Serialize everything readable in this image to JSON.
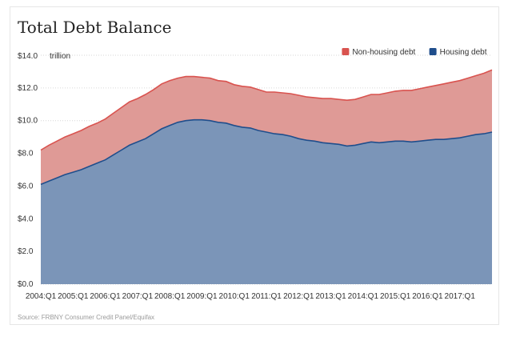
{
  "chart_data": {
    "type": "area",
    "stacked": true,
    "title": "Total Debt Balance",
    "unit_prefix": "$14.0",
    "unit_label": "trillion",
    "yticks": [
      "$0.0",
      "$2.0",
      "$4.0",
      "$6.0",
      "$8.0",
      "$10.0",
      "$12.0",
      "$14.0"
    ],
    "ylim": [
      0,
      14
    ],
    "xticks": [
      "2004:Q1",
      "2005:Q1",
      "2006:Q1",
      "2007:Q1",
      "2008:Q1",
      "2009:Q1",
      "2010:Q1",
      "2011:Q1",
      "2012:Q1",
      "2013:Q1",
      "2014:Q1",
      "2015:Q1",
      "2016:Q1",
      "2017:Q1"
    ],
    "grid": "horizontal",
    "legend_position": "top-right",
    "legend": [
      {
        "name": "Non-housing debt",
        "color": "#d9534f"
      },
      {
        "name": "Housing debt",
        "color": "#1f4e8c"
      }
    ],
    "x": [
      "2004:Q1",
      "2004:Q2",
      "2004:Q3",
      "2004:Q4",
      "2005:Q1",
      "2005:Q2",
      "2005:Q3",
      "2005:Q4",
      "2006:Q1",
      "2006:Q2",
      "2006:Q3",
      "2006:Q4",
      "2007:Q1",
      "2007:Q2",
      "2007:Q3",
      "2007:Q4",
      "2008:Q1",
      "2008:Q2",
      "2008:Q3",
      "2008:Q4",
      "2009:Q1",
      "2009:Q2",
      "2009:Q3",
      "2009:Q4",
      "2010:Q1",
      "2010:Q2",
      "2010:Q3",
      "2010:Q4",
      "2011:Q1",
      "2011:Q2",
      "2011:Q3",
      "2011:Q4",
      "2012:Q1",
      "2012:Q2",
      "2012:Q3",
      "2012:Q4",
      "2013:Q1",
      "2013:Q2",
      "2013:Q3",
      "2013:Q4",
      "2014:Q1",
      "2014:Q2",
      "2014:Q3",
      "2014:Q4",
      "2015:Q1",
      "2015:Q2",
      "2015:Q3",
      "2015:Q4",
      "2016:Q1",
      "2016:Q2",
      "2016:Q3",
      "2016:Q4",
      "2017:Q1",
      "2017:Q2",
      "2017:Q3",
      "2017:Q4",
      "2018:Q1"
    ],
    "series": [
      {
        "name": "Housing debt",
        "color": "#1f4e8c",
        "fill": "#7b95b8",
        "values": [
          6.1,
          6.3,
          6.5,
          6.7,
          6.85,
          7.0,
          7.2,
          7.4,
          7.6,
          7.9,
          8.2,
          8.5,
          8.7,
          8.9,
          9.2,
          9.5,
          9.7,
          9.9,
          10.0,
          10.05,
          10.05,
          10.0,
          9.9,
          9.85,
          9.7,
          9.6,
          9.55,
          9.4,
          9.3,
          9.2,
          9.15,
          9.05,
          8.9,
          8.8,
          8.75,
          8.65,
          8.6,
          8.55,
          8.45,
          8.5,
          8.6,
          8.7,
          8.65,
          8.7,
          8.75,
          8.75,
          8.7,
          8.75,
          8.8,
          8.85,
          8.85,
          8.9,
          8.95,
          9.05,
          9.15,
          9.2,
          9.3
        ]
      },
      {
        "name": "Non-housing debt",
        "color": "#d9534f",
        "fill": "#df9a96",
        "values": [
          2.1,
          2.2,
          2.25,
          2.3,
          2.35,
          2.4,
          2.45,
          2.45,
          2.5,
          2.55,
          2.6,
          2.65,
          2.65,
          2.7,
          2.7,
          2.75,
          2.75,
          2.7,
          2.7,
          2.65,
          2.6,
          2.6,
          2.55,
          2.55,
          2.5,
          2.5,
          2.5,
          2.5,
          2.45,
          2.55,
          2.55,
          2.6,
          2.65,
          2.65,
          2.65,
          2.7,
          2.75,
          2.75,
          2.8,
          2.8,
          2.85,
          2.9,
          2.95,
          3.0,
          3.05,
          3.1,
          3.15,
          3.2,
          3.25,
          3.3,
          3.4,
          3.45,
          3.5,
          3.55,
          3.6,
          3.7,
          3.8
        ]
      }
    ]
  },
  "source_text": "Source: FRBNY Consumer Credit Panel/Equifax"
}
